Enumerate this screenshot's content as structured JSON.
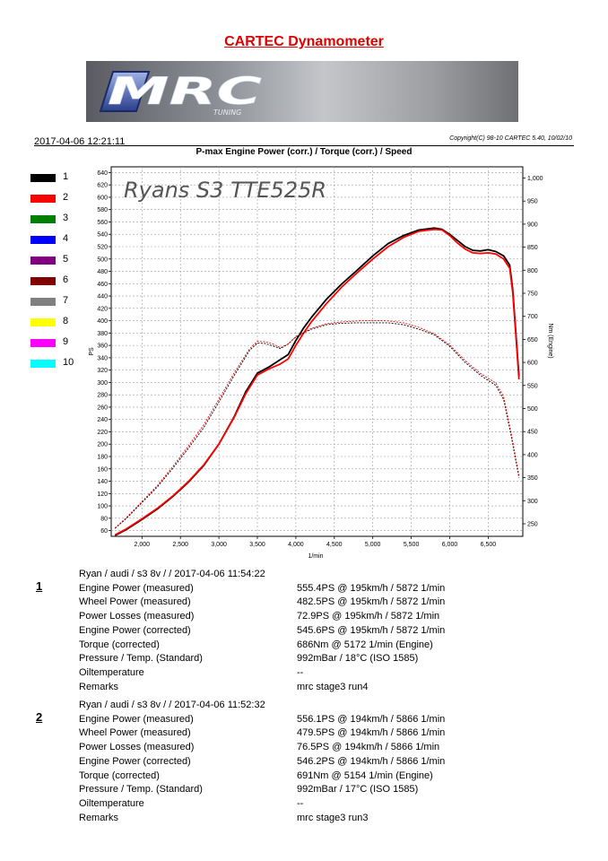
{
  "report": {
    "title": "CARTEC Dynamometer",
    "banner_logo": "MRC",
    "banner_sub": "TUNING",
    "datetime": "2017-04-06  12:21:11",
    "copyright": "Copyright(C) 98-10 CARTEC 5.40, 10/02/10",
    "chart_title": "P-max Engine Power (corr.) / Torque (corr.) / Speed",
    "annotation": "Ryans S3 TTE525R"
  },
  "legend": [
    {
      "label": "1",
      "color": "#000000"
    },
    {
      "label": "2",
      "color": "#ff0000"
    },
    {
      "label": "3",
      "color": "#008000"
    },
    {
      "label": "4",
      "color": "#0000ff"
    },
    {
      "label": "5",
      "color": "#800080"
    },
    {
      "label": "6",
      "color": "#800000"
    },
    {
      "label": "7",
      "color": "#808080"
    },
    {
      "label": "8",
      "color": "#ffff00"
    },
    {
      "label": "9",
      "color": "#ff00ff"
    },
    {
      "label": "10",
      "color": "#00ffff"
    }
  ],
  "chart_data": {
    "type": "line",
    "title": "P-max Engine Power (corr.) / Torque (corr.) / Speed",
    "xlabel": "1/min",
    "ylabel": "PS",
    "y2label": "Nm (Engine)",
    "xlim": [
      1600,
      6950
    ],
    "ylim": [
      50,
      650
    ],
    "y2lim": [
      230,
      1030
    ],
    "xticks": [
      2000,
      2500,
      3000,
      3500,
      4000,
      4500,
      5000,
      5500,
      6000,
      6500
    ],
    "xtick_labels": [
      "2,000",
      "2,500",
      "3,000",
      "3,500",
      "4,000",
      "4,500",
      "5,000",
      "5,500",
      "6,000",
      "6,500"
    ],
    "yticks": [
      60,
      80,
      100,
      120,
      140,
      160,
      180,
      200,
      220,
      240,
      260,
      280,
      300,
      320,
      340,
      360,
      380,
      400,
      420,
      440,
      460,
      480,
      500,
      520,
      540,
      560,
      580,
      600,
      620,
      640
    ],
    "y2ticks": [
      250,
      300,
      350,
      400,
      450,
      500,
      550,
      600,
      650,
      700,
      750,
      800,
      850,
      900,
      950,
      1000
    ],
    "y2tick_labels": [
      "250",
      "300",
      "350",
      "400",
      "450",
      "500",
      "550",
      "600",
      "650",
      "700",
      "750",
      "800",
      "850",
      "900",
      "950",
      "1,000"
    ],
    "grid": true,
    "series": [
      {
        "name": "1",
        "kind": "power",
        "axis": "left",
        "color": "#000000",
        "style": "solid",
        "x": [
          1650,
          1800,
          2000,
          2200,
          2400,
          2600,
          2800,
          3000,
          3200,
          3350,
          3500,
          3650,
          3800,
          3900,
          4000,
          4100,
          4200,
          4400,
          4600,
          4800,
          5000,
          5200,
          5400,
          5600,
          5800,
          5900,
          6000,
          6100,
          6200,
          6300,
          6400,
          6500,
          6600,
          6700,
          6780,
          6820,
          6860,
          6900
        ],
        "y": [
          52,
          62,
          78,
          95,
          115,
          138,
          165,
          200,
          245,
          285,
          315,
          325,
          337,
          345,
          368,
          388,
          405,
          435,
          460,
          482,
          505,
          525,
          538,
          547,
          550,
          548,
          540,
          530,
          520,
          514,
          513,
          515,
          512,
          505,
          490,
          450,
          380,
          310
        ]
      },
      {
        "name": "2",
        "kind": "power",
        "axis": "left",
        "color": "#ff0000",
        "style": "solid",
        "x": [
          1650,
          1800,
          2000,
          2200,
          2400,
          2600,
          2800,
          3000,
          3200,
          3350,
          3500,
          3650,
          3800,
          3900,
          4000,
          4100,
          4200,
          4400,
          4600,
          4800,
          5000,
          5200,
          5400,
          5600,
          5800,
          5900,
          6000,
          6100,
          6200,
          6300,
          6400,
          6500,
          6600,
          6700,
          6780,
          6820,
          6860,
          6900
        ],
        "y": [
          53,
          63,
          79,
          96,
          116,
          139,
          166,
          200,
          244,
          282,
          312,
          322,
          330,
          338,
          360,
          380,
          398,
          428,
          455,
          478,
          500,
          520,
          535,
          545,
          548,
          547,
          538,
          526,
          516,
          510,
          509,
          510,
          508,
          500,
          485,
          445,
          375,
          305
        ]
      },
      {
        "name": "1",
        "kind": "torque",
        "axis": "right",
        "color": "#000000",
        "style": "dotted",
        "x": [
          1650,
          1800,
          2000,
          2200,
          2400,
          2600,
          2800,
          3000,
          3200,
          3400,
          3500,
          3600,
          3700,
          3800,
          3900,
          4000,
          4200,
          4400,
          4600,
          4800,
          5000,
          5200,
          5400,
          5600,
          5800,
          6000,
          6200,
          6400,
          6600,
          6700,
          6800,
          6900
        ],
        "y": [
          240,
          262,
          296,
          330,
          370,
          413,
          458,
          514,
          572,
          626,
          642,
          641,
          636,
          630,
          640,
          655,
          672,
          682,
          685,
          686,
          686,
          686,
          682,
          672,
          660,
          635,
          600,
          572,
          550,
          520,
          440,
          350
        ]
      },
      {
        "name": "2",
        "kind": "torque",
        "axis": "right",
        "color": "#ff0000",
        "style": "dotted",
        "x": [
          1650,
          1800,
          2000,
          2200,
          2400,
          2600,
          2800,
          3000,
          3200,
          3400,
          3500,
          3600,
          3700,
          3800,
          3900,
          4000,
          4200,
          4400,
          4600,
          4800,
          5000,
          5200,
          5400,
          5600,
          5800,
          6000,
          6200,
          6400,
          6600,
          6700,
          6800,
          6900
        ],
        "y": [
          241,
          264,
          298,
          333,
          374,
          418,
          464,
          520,
          578,
          630,
          646,
          645,
          640,
          632,
          640,
          656,
          674,
          684,
          688,
          690,
          691,
          690,
          686,
          676,
          662,
          638,
          604,
          576,
          555,
          526,
          446,
          355
        ]
      }
    ]
  },
  "runs": [
    {
      "index": "1",
      "header": "Ryan / audi / s3 8v /  / 2017-04-06 11:54:22",
      "rows": [
        {
          "label": "Engine Power (measured)",
          "value": "555.4PS @ 195km/h / 5872 1/min"
        },
        {
          "label": "Wheel Power (measured)",
          "value": "482.5PS @ 195km/h / 5872 1/min"
        },
        {
          "label": "Power Losses (measured)",
          "value": "72.9PS @ 195km/h / 5872 1/min"
        },
        {
          "label": "Engine Power (corrected)",
          "value": "545.6PS @ 195km/h / 5872 1/min"
        },
        {
          "label": "Torque (corrected)",
          "value": "686Nm @ 5172 1/min (Engine)"
        },
        {
          "label": "Pressure / Temp. (Standard)",
          "value": "992mBar / 18°C    (ISO 1585)"
        },
        {
          "label": "Oiltemperature",
          "value": "--"
        },
        {
          "label": "Remarks",
          "value": "mrc stage3 run4"
        }
      ]
    },
    {
      "index": "2",
      "header": "Ryan / audi / s3 8v /  / 2017-04-06 11:52:32",
      "rows": [
        {
          "label": "Engine Power (measured)",
          "value": "556.1PS @ 194km/h / 5866 1/min"
        },
        {
          "label": "Wheel Power (measured)",
          "value": "479.5PS @ 194km/h / 5866 1/min"
        },
        {
          "label": "Power Losses (measured)",
          "value": "76.5PS @ 194km/h / 5866 1/min"
        },
        {
          "label": "Engine Power (corrected)",
          "value": "546.2PS @ 194km/h / 5866 1/min"
        },
        {
          "label": "Torque (corrected)",
          "value": "691Nm @ 5154 1/min (Engine)"
        },
        {
          "label": "Pressure / Temp. (Standard)",
          "value": "992mBar / 17°C    (ISO 1585)"
        },
        {
          "label": "Oiltemperature",
          "value": "--"
        },
        {
          "label": "Remarks",
          "value": "mrc stage3 run3"
        }
      ]
    }
  ]
}
